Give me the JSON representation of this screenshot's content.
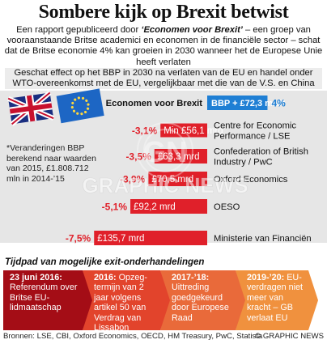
{
  "title": "Sombere kijk op Brexit betwist",
  "intro_prefix": "Een rapport gepubliceerd door ",
  "intro_source": "‘Economen voor Brexit’",
  "intro_rest": " – een groep van vooraanstaande Britse academici en economen in de financiële sector – schat dat de Britse economie 4% kan groeien in 2030 wanneer het de Europese Unie heeft verlaten",
  "subtitle": "Geschat effect op het BBP in 2030 na verlaten van de EU en handel onder WTO-overeenkomst met de EU, vergelijkbaar met die van de V.S. en China",
  "footnote": "*Veranderingen BBP berekend naar waarden van 2015, £1.808.712 mln in 2014-’15",
  "chart_data": {
    "type": "bar",
    "categories": [
      "Economen voor Brexit",
      "Centre for Economic Performance / LSE",
      "Confederation of British Industry / PwC",
      "Oxford Economics",
      "OESO",
      "Ministerie van Financiën"
    ],
    "category_lines": [
      [
        "Economen voor Brexit"
      ],
      [
        "Centre for Economic",
        "Performance / LSE"
      ],
      [
        "Confederation of British",
        "Industry / PwC"
      ],
      [
        "Oxford Economics"
      ],
      [
        "OESO"
      ],
      [
        "Ministerie van Financiën"
      ]
    ],
    "values": [
      72.3,
      -56.1,
      -63.3,
      -70.5,
      -92.2,
      -135.7
    ],
    "unit": "£ mrd",
    "bar_labels": [
      "BBP + £72,3 mrd*",
      "Min £56,1 mrd",
      "£63,3 mrd",
      "£70,5 mrd",
      "£92,2 mrd",
      "£135,7 mrd"
    ],
    "percent_labels": [
      "4%",
      "-3,1%",
      "-3,5%",
      "-3,9%",
      "-5,1%",
      "-7,5%"
    ],
    "colors": {
      "positive": "#1f7fd4",
      "negative": "#e0202a",
      "flag_blue": "#1d66c4",
      "flag_star": "#ffd83d"
    }
  },
  "timeline": {
    "title": "Tijdpad van mogelijke exit-onderhandelingen",
    "colors": [
      "#a40d16",
      "#c91d24",
      "#e2442c",
      "#e96a3a",
      "#f0913e"
    ],
    "steps": [
      {
        "date": "23 juni 2016:",
        "text": "Referendum over Britse EU-lidmaatschap"
      },
      {
        "date": "2016:",
        "text": "Opzeg-termijn van 2 jaar volgens artikel 50 van Verdrag van Lissabon"
      },
      {
        "date": "2017-’18:",
        "text": "Uittreding goedgekeurd door Europese Raad"
      },
      {
        "date": "2019-’20:",
        "text": "EU-verdragen niet meer van kracht – GB verlaat EU"
      }
    ]
  },
  "sources": "Bronnen: LSE, CBI, Oxford Economics, OECD, HM Treasury, PwC, Statista",
  "copyright": "© GRAPHIC NEWS",
  "watermark": "GRAPHIC NEWS"
}
